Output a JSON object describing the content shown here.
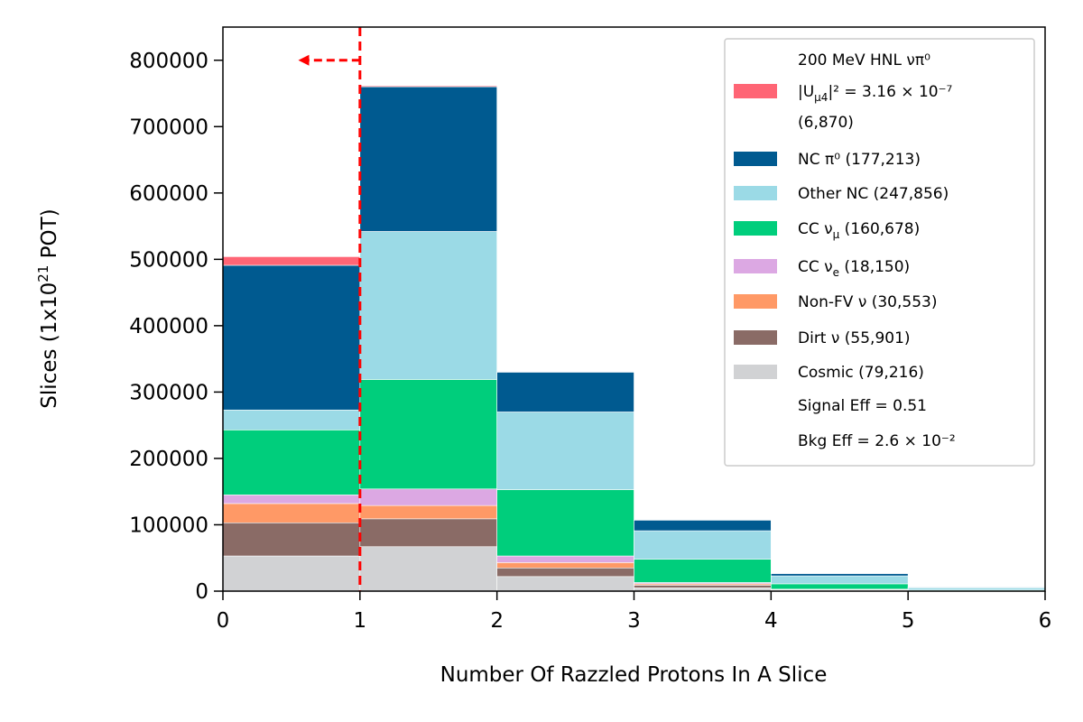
{
  "chart_data": {
    "type": "bar",
    "stacked": true,
    "title": "",
    "xlabel": "Number Of Razzled Protons In A Slice",
    "ylabel": {
      "main": "Slices (1x10",
      "sup": "21",
      "end": " POT)"
    },
    "xlim": [
      0,
      6
    ],
    "ylim": [
      0,
      850000
    ],
    "x_ticks": [
      "0",
      "1",
      "2",
      "3",
      "4",
      "5",
      "6"
    ],
    "y_ticks": [
      "0",
      "100000",
      "200000",
      "300000",
      "400000",
      "500000",
      "600000",
      "700000",
      "800000"
    ],
    "bins": [
      [
        0,
        1
      ],
      [
        1,
        2
      ],
      [
        2,
        3
      ],
      [
        3,
        4
      ],
      [
        4,
        5
      ],
      [
        5,
        6
      ]
    ],
    "series": [
      {
        "key": "cosmic",
        "color": "#d1d2d4",
        "values": [
          53000,
          67000,
          22000,
          5000,
          1000,
          200
        ]
      },
      {
        "key": "dirt",
        "color": "#8a6b66",
        "values": [
          50000,
          42000,
          13000,
          4000,
          1000,
          200
        ]
      },
      {
        "key": "nonfv",
        "color": "#ff9966",
        "values": [
          29000,
          20000,
          8000,
          2000,
          500,
          100
        ]
      },
      {
        "key": "ccnue",
        "color": "#dca8e3",
        "values": [
          13000,
          25000,
          10000,
          2000,
          500,
          100
        ]
      },
      {
        "key": "ccnumu",
        "color": "#00ce7c",
        "values": [
          98000,
          165000,
          100000,
          35000,
          8000,
          1000
        ]
      },
      {
        "key": "othernc",
        "color": "#9bdae6",
        "values": [
          30000,
          223000,
          117000,
          43000,
          12000,
          3500
        ]
      },
      {
        "key": "ncpi0",
        "color": "#005a90",
        "values": [
          218000,
          218000,
          60000,
          16000,
          3500,
          1000
        ]
      },
      {
        "key": "signal",
        "color": "#ff6575",
        "values": [
          13000,
          1500,
          300,
          100,
          50,
          10
        ]
      }
    ],
    "cut_line": {
      "x": 1,
      "color": "#ff0000",
      "arrow_from": 1,
      "arrow_to": 0.55,
      "arrow_y": 800000
    },
    "legend": {
      "position": "top-right",
      "entries": [
        {
          "series": "signal",
          "lines": [
            "200 MeV HNL νπ⁰",
            "|U",
            "μ4",
            "|² = 3.16 × 10⁻⁷",
            " (6,870)"
          ]
        },
        {
          "series": "ncpi0",
          "label": "NC π⁰ (177,213)"
        },
        {
          "series": "othernc",
          "label": "Other NC (247,856)"
        },
        {
          "series": "ccnumu",
          "label_main": "CC ν",
          "label_sub": "μ",
          "label_end": " (160,678)"
        },
        {
          "series": "ccnue",
          "label_main": "CC ν",
          "label_sub": "e",
          "label_end": " (18,150)"
        },
        {
          "series": "nonfv",
          "label": "Non-FV ν (30,553)"
        },
        {
          "series": "dirt",
          "label": "Dirt ν (55,901)"
        },
        {
          "series": "cosmic",
          "label": "Cosmic (79,216)"
        }
      ],
      "extra": [
        "Signal Eff = 0.51",
        "Bkg Eff = 2.6 × 10⁻²"
      ]
    }
  }
}
